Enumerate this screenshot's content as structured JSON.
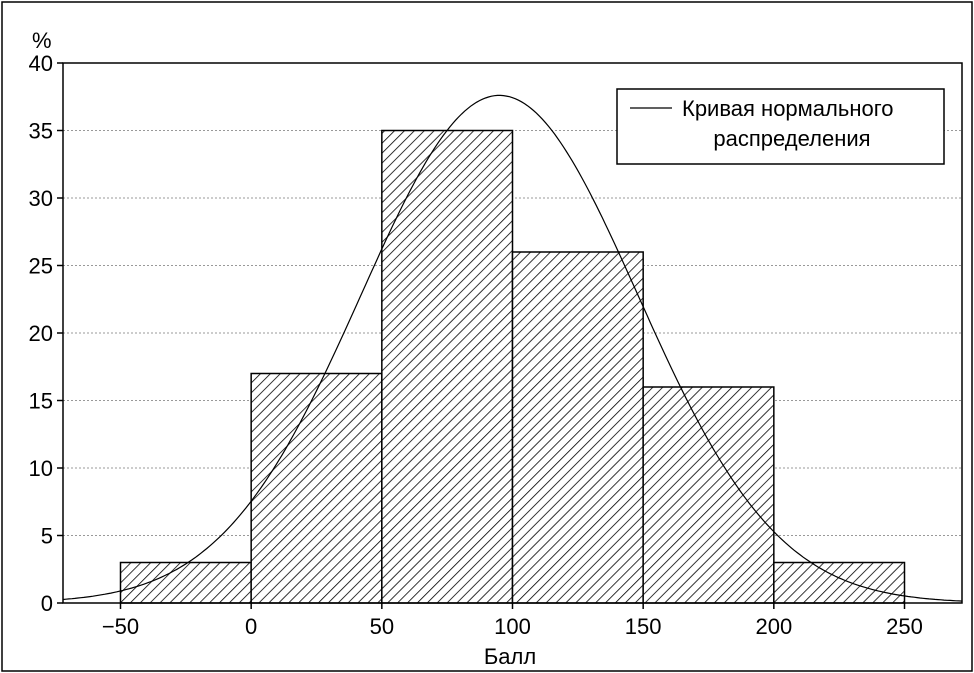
{
  "chart_data": {
    "type": "bar",
    "title": "",
    "xlabel": "Балл",
    "ylabel": "%",
    "xlim": [
      -72,
      272
    ],
    "ylim": [
      0,
      40
    ],
    "x_ticks": [
      -50,
      0,
      50,
      100,
      150,
      200,
      250
    ],
    "x_tick_labels": [
      "−50",
      "0",
      "50",
      "100",
      "150",
      "200",
      "250"
    ],
    "y_ticks": [
      0,
      5,
      10,
      15,
      20,
      25,
      30,
      35,
      40
    ],
    "y_tick_labels": [
      "0",
      "5",
      "10",
      "15",
      "20",
      "25",
      "30",
      "35",
      "40"
    ],
    "grid": "horizontal dotted",
    "bins": [
      {
        "from": -50,
        "to": 0,
        "value": 3
      },
      {
        "from": 0,
        "to": 50,
        "value": 17
      },
      {
        "from": 50,
        "to": 100,
        "value": 35
      },
      {
        "from": 100,
        "to": 150,
        "value": 26
      },
      {
        "from": 150,
        "to": 200,
        "value": 16
      },
      {
        "from": 200,
        "to": 250,
        "value": 3
      }
    ],
    "bar_fill": "diagonal hatch",
    "normal_curve": {
      "mean": 95,
      "sd": 53,
      "peak": 37.6
    },
    "legend": {
      "placement": "top-right",
      "line1": "Кривая нормального",
      "line2": "распределения"
    },
    "colors": {
      "bars": "#000000",
      "curve": "#000000",
      "grid": "#999999",
      "background": "#ffffff"
    }
  }
}
